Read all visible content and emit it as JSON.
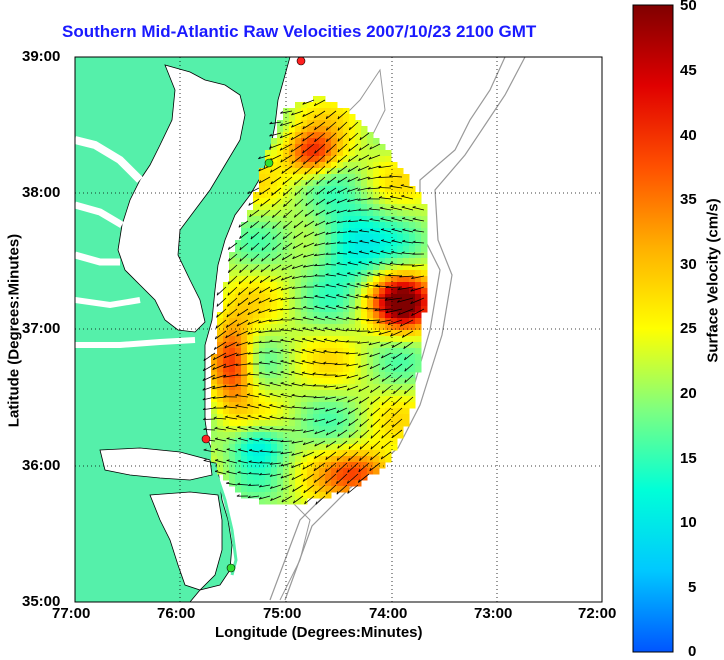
{
  "title": "Southern Mid-Atlantic Raw Velocities 2007/10/23 2100 GMT",
  "x_axis": {
    "label": "Longitude (Degrees:Minutes)",
    "ticks": [
      "77:00",
      "76:00",
      "75:00",
      "74:00",
      "73:00",
      "72:00"
    ]
  },
  "y_axis": {
    "label": "Latitude (Degrees:Minutes)",
    "ticks": [
      "39:00",
      "38:00",
      "37:00",
      "36:00",
      "35:00"
    ]
  },
  "colorbar": {
    "label": "Surface Velocity (cm/s)",
    "ticks": [
      "50",
      "45",
      "40",
      "35",
      "30",
      "25",
      "20",
      "15",
      "10",
      "5",
      "0"
    ],
    "min": 0,
    "max": 50,
    "gradient_colors": [
      "#0055ff",
      "#00c8ff",
      "#00ffd8",
      "#7fff7f",
      "#ffff00",
      "#ffb000",
      "#ff5000",
      "#e00000",
      "#800000"
    ]
  },
  "map_colors": {
    "land": "#55f0aa",
    "water": "#ffffff",
    "bathymetry": "#999999",
    "grid": "#000000"
  },
  "stations": [
    {
      "name": "station-top",
      "color": "#ff2020"
    },
    {
      "name": "station-upper",
      "color": "#30e030"
    },
    {
      "name": "station-middle",
      "color": "#ff2020"
    },
    {
      "name": "station-lower",
      "color": "#30e030"
    }
  ]
}
